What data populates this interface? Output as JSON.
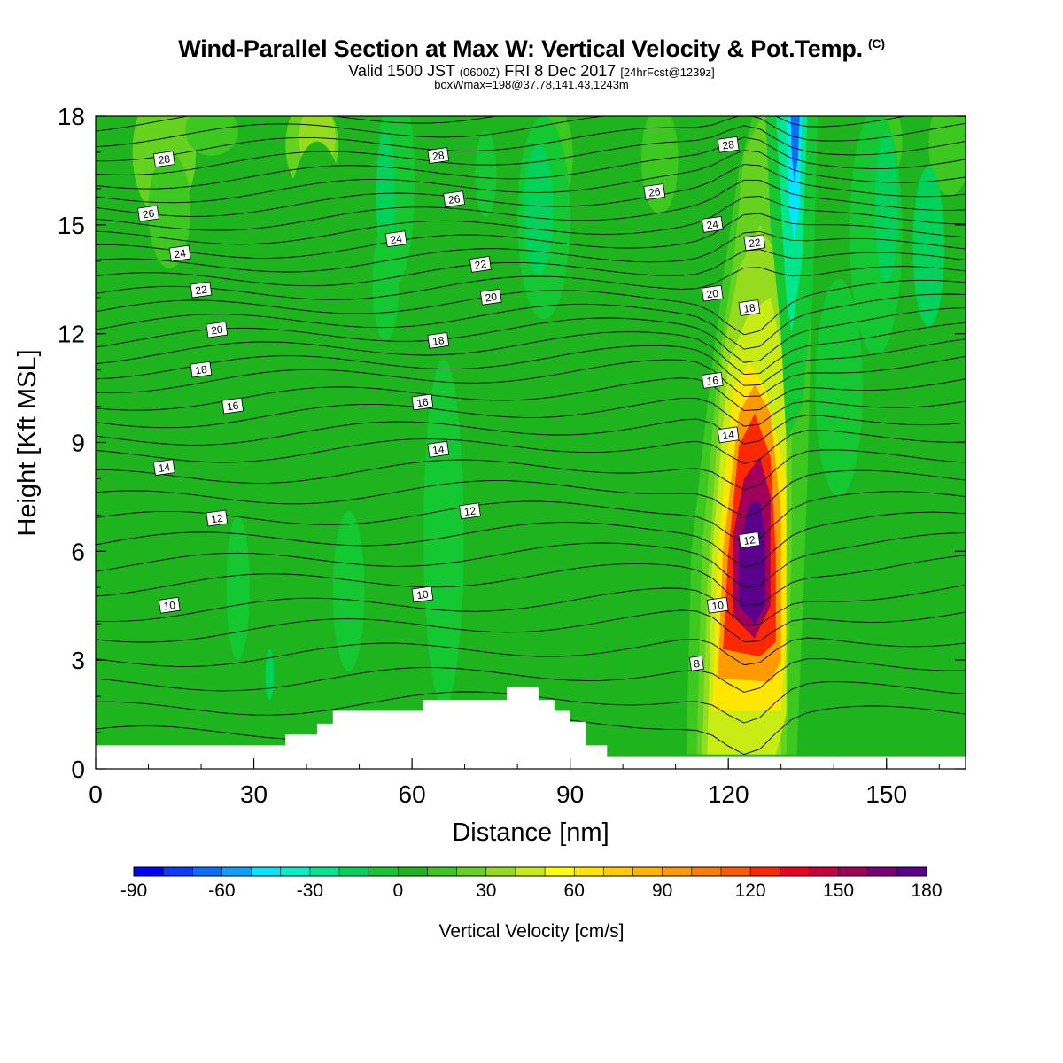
{
  "title": {
    "main": "Wind-Parallel Section at Max W: Vertical Velocity & Pot.Temp.",
    "copyright": "(C)",
    "valid_prefix": "Valid 1500 JST",
    "valid_utc": "(0600Z)",
    "valid_date": "FRI 8 Dec 2017",
    "forecast": "[24hrFcst@1239z]",
    "boxmax": "boxWmax=198@37.78,141.43,1243m"
  },
  "chart_data": {
    "type": "heatmap",
    "xlabel": "Distance [nm]",
    "ylabel": "Height [Kft MSL]",
    "xlim": [
      0,
      165
    ],
    "ylim": [
      0,
      18
    ],
    "x_ticks": [
      0,
      30,
      60,
      90,
      120,
      150
    ],
    "y_ticks": [
      0,
      3,
      6,
      9,
      12,
      15,
      18
    ],
    "colorbar": {
      "label": "Vertical Velocity [cm/s]",
      "min": -90,
      "max": 180,
      "step": 10,
      "tick_labels": [
        -90,
        -60,
        -30,
        0,
        30,
        60,
        90,
        120,
        150,
        180
      ],
      "colors": [
        "#0000ff",
        "#0a3cff",
        "#0a6eff",
        "#0aa0ff",
        "#00e6ff",
        "#00f0c8",
        "#00e68c",
        "#00d25a",
        "#14c832",
        "#1eb41e",
        "#3cc81e",
        "#64d21e",
        "#96dc1e",
        "#c8ec14",
        "#ffff00",
        "#ffe600",
        "#ffcd00",
        "#ffb400",
        "#ff9b00",
        "#ff7d00",
        "#ff5a00",
        "#ff2800",
        "#f0001e",
        "#c8003c",
        "#a0005a",
        "#780078",
        "#5a008c"
      ]
    },
    "theta_labels": [
      {
        "v": "28",
        "x": 13,
        "y": 16.8
      },
      {
        "v": "28",
        "x": 65,
        "y": 16.9
      },
      {
        "v": "28",
        "x": 120,
        "y": 17.2
      },
      {
        "v": "26",
        "x": 10,
        "y": 15.3
      },
      {
        "v": "26",
        "x": 68,
        "y": 15.7
      },
      {
        "v": "26",
        "x": 106,
        "y": 15.9
      },
      {
        "v": "24",
        "x": 16,
        "y": 14.2
      },
      {
        "v": "24",
        "x": 57,
        "y": 14.6
      },
      {
        "v": "24",
        "x": 117,
        "y": 15.0
      },
      {
        "v": "22",
        "x": 20,
        "y": 13.2
      },
      {
        "v": "22",
        "x": 73,
        "y": 13.9
      },
      {
        "v": "22",
        "x": 125,
        "y": 14.5
      },
      {
        "v": "20",
        "x": 23,
        "y": 12.1
      },
      {
        "v": "20",
        "x": 75,
        "y": 13.0
      },
      {
        "v": "20",
        "x": 117,
        "y": 13.1
      },
      {
        "v": "18",
        "x": 20,
        "y": 11.0
      },
      {
        "v": "18",
        "x": 65,
        "y": 11.8
      },
      {
        "v": "18",
        "x": 124,
        "y": 12.7
      },
      {
        "v": "16",
        "x": 26,
        "y": 10.0
      },
      {
        "v": "16",
        "x": 62,
        "y": 10.1
      },
      {
        "v": "16",
        "x": 117,
        "y": 10.7
      },
      {
        "v": "14",
        "x": 13,
        "y": 8.3
      },
      {
        "v": "14",
        "x": 65,
        "y": 8.8
      },
      {
        "v": "14",
        "x": 120,
        "y": 9.2
      },
      {
        "v": "12",
        "x": 23,
        "y": 6.9
      },
      {
        "v": "12",
        "x": 71,
        "y": 7.1
      },
      {
        "v": "12",
        "x": 124,
        "y": 6.3
      },
      {
        "v": "10",
        "x": 14,
        "y": 4.5
      },
      {
        "v": "10",
        "x": 62,
        "y": 4.8
      },
      {
        "v": "10",
        "x": 118,
        "y": 4.5
      },
      {
        "v": "8",
        "x": 114,
        "y": 2.9
      }
    ],
    "terrain_profile": [
      [
        0,
        0.65
      ],
      [
        36,
        0.65
      ],
      [
        36,
        0.95
      ],
      [
        42,
        0.95
      ],
      [
        42,
        1.25
      ],
      [
        45,
        1.25
      ],
      [
        45,
        1.6
      ],
      [
        62,
        1.6
      ],
      [
        62,
        1.9
      ],
      [
        78,
        1.9
      ],
      [
        78,
        2.25
      ],
      [
        84,
        2.25
      ],
      [
        84,
        1.9
      ],
      [
        87,
        1.9
      ],
      [
        87,
        1.6
      ],
      [
        90,
        1.6
      ],
      [
        90,
        1.3
      ],
      [
        93,
        1.3
      ],
      [
        93,
        0.65
      ],
      [
        97,
        0.65
      ],
      [
        97,
        0.35
      ],
      [
        165,
        0.35
      ]
    ]
  }
}
